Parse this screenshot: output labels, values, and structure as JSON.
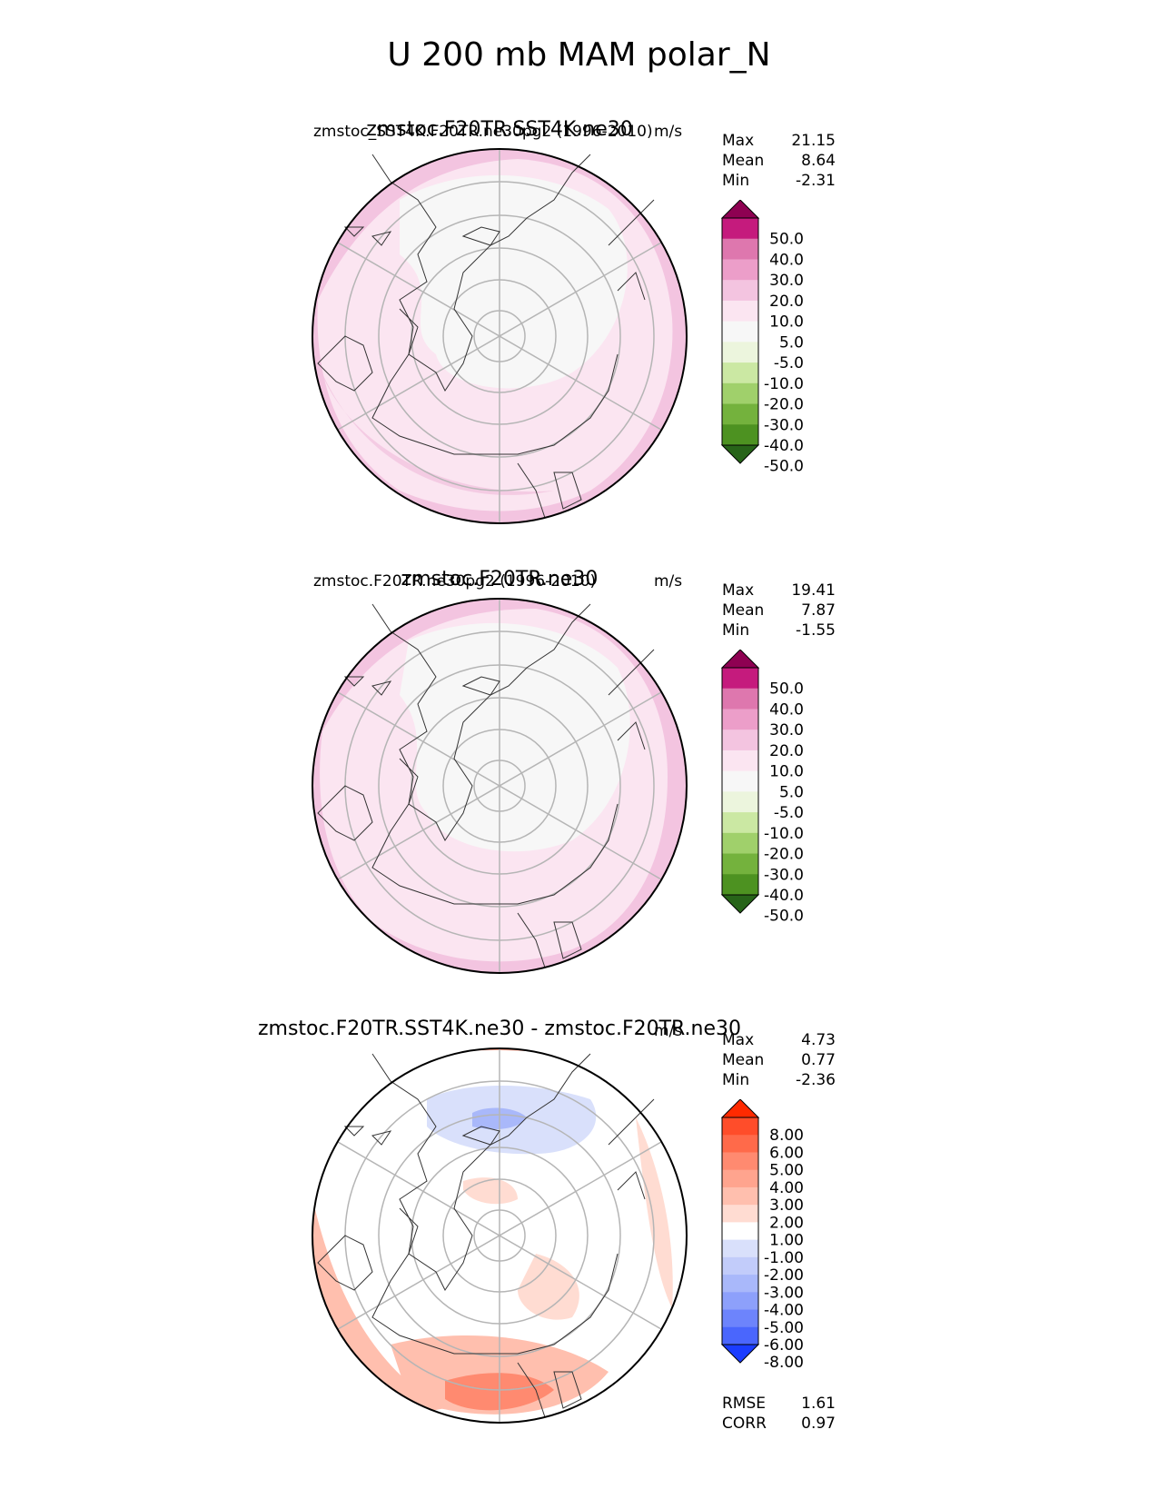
{
  "main_title": "U 200 mb MAM polar_N",
  "panels": [
    {
      "title": "zmstoc.F20TR.SST4K.ne30",
      "left_subtitle": "zmstoc_SST4K.F20TR.ne30pg2 (1996-2010)",
      "right_subtitle": "m/s",
      "stats": {
        "max_label": "Max",
        "max": "21.15",
        "mean_label": "Mean",
        "mean": "8.64",
        "min_label": "Min",
        "min": "-2.31"
      }
    },
    {
      "title": "zmstoc.F20TR.ne30",
      "left_subtitle": "zmstoc.F20TR.ne30pg2 (1996-2010)",
      "right_subtitle": "m/s",
      "stats": {
        "max_label": "Max",
        "max": "19.41",
        "mean_label": "Mean",
        "mean": "7.87",
        "min_label": "Min",
        "min": "-1.55"
      }
    },
    {
      "title": "zmstoc.F20TR.SST4K.ne30 - zmstoc.F20TR.ne30",
      "left_subtitle": "",
      "right_subtitle": "m/s",
      "stats": {
        "max_label": "Max",
        "max": "4.73",
        "mean_label": "Mean",
        "mean": "0.77",
        "min_label": "Min",
        "min": "-2.36"
      },
      "metrics": {
        "rmse_label": "RMSE",
        "rmse": "1.61",
        "corr_label": "CORR",
        "corr": "0.97"
      }
    }
  ],
  "chart_data": [
    {
      "type": "heatmap",
      "projection": "north polar stereographic",
      "title": "zmstoc.F20TR.SST4K.ne30",
      "variable": "U 200 mb",
      "units": "m/s",
      "period": "1996-2010",
      "colorbar_levels": [
        "50.0",
        "40.0",
        "30.0",
        "20.0",
        "10.0",
        "5.0",
        "-5.0",
        "-10.0",
        "-20.0",
        "-30.0",
        "-40.0",
        "-50.0"
      ],
      "colorbar_colors": [
        "#8e0152",
        "#c51b7d",
        "#de77ae",
        "#ec9ec9",
        "#f3c4e0",
        "#fbe5f1",
        "#f7f7f7",
        "#ecf5dd",
        "#cbe8a3",
        "#a0d06b",
        "#74b23d",
        "#4d9221",
        "#276419"
      ],
      "max": 21.15,
      "mean": 8.64,
      "min": -2.31
    },
    {
      "type": "heatmap",
      "projection": "north polar stereographic",
      "title": "zmstoc.F20TR.ne30",
      "variable": "U 200 mb",
      "units": "m/s",
      "period": "1996-2010",
      "colorbar_levels": [
        "50.0",
        "40.0",
        "30.0",
        "20.0",
        "10.0",
        "5.0",
        "-5.0",
        "-10.0",
        "-20.0",
        "-30.0",
        "-40.0",
        "-50.0"
      ],
      "colorbar_colors": [
        "#8e0152",
        "#c51b7d",
        "#de77ae",
        "#ec9ec9",
        "#f3c4e0",
        "#fbe5f1",
        "#f7f7f7",
        "#ecf5dd",
        "#cbe8a3",
        "#a0d06b",
        "#74b23d",
        "#4d9221",
        "#276419"
      ],
      "max": 19.41,
      "mean": 7.87,
      "min": -1.55
    },
    {
      "type": "heatmap",
      "projection": "north polar stereographic",
      "title": "zmstoc.F20TR.SST4K.ne30 - zmstoc.F20TR.ne30",
      "variable": "U 200 mb difference",
      "units": "m/s",
      "colorbar_levels": [
        "8.00",
        "6.00",
        "5.00",
        "4.00",
        "3.00",
        "2.00",
        "1.00",
        "-1.00",
        "-2.00",
        "-3.00",
        "-4.00",
        "-5.00",
        "-6.00",
        "-8.00"
      ],
      "colorbar_colors": [
        "#ff2a00",
        "#ff4d2a",
        "#ff6a4a",
        "#ff8a70",
        "#ffa48e",
        "#ffbfae",
        "#ffdcd2",
        "#ffffff",
        "#d9e0fb",
        "#c2ccfa",
        "#a9b8fa",
        "#8da0fb",
        "#6d84fc",
        "#4a66fd",
        "#1a3cff"
      ],
      "max": 4.73,
      "mean": 0.77,
      "min": -2.36,
      "rmse": 1.61,
      "corr": 0.97
    }
  ],
  "colors": {
    "land_outline": "#333333",
    "grid": "#b5b5b5",
    "frame": "#000000"
  }
}
